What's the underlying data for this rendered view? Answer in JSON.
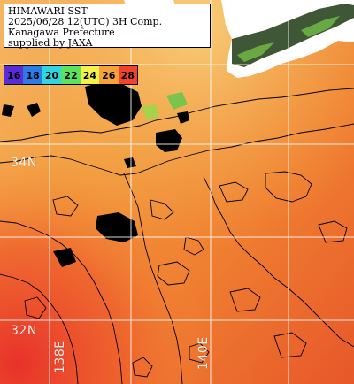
{
  "title_box": {
    "lines": [
      "HIMAWARI SST",
      "2025/06/28 12(UTC) 3H Comp.",
      "Kanagawa Prefecture",
      "supplied by JAXA"
    ]
  },
  "color_scale": {
    "items": [
      {
        "label": "16",
        "color": "#5b2bd9"
      },
      {
        "label": "18",
        "color": "#2a7ae8"
      },
      {
        "label": "20",
        "color": "#2fd6e0"
      },
      {
        "label": "22",
        "color": "#5be35b"
      },
      {
        "label": "24",
        "color": "#f3f24a"
      },
      {
        "label": "26",
        "color": "#f5a23b"
      },
      {
        "label": "28",
        "color": "#f2412d"
      }
    ]
  },
  "grid_labels": {
    "lat": [
      "34N",
      "32N"
    ],
    "lon": [
      "138E",
      "140E"
    ]
  },
  "colors": {
    "land": "#ffffff",
    "land_dark": "#1f3a14",
    "sea_warm": "#f29a3a",
    "sea_hot": "#e8412a",
    "grid": "#ffffff",
    "contour": "#000000",
    "cloud": "#000000"
  }
}
